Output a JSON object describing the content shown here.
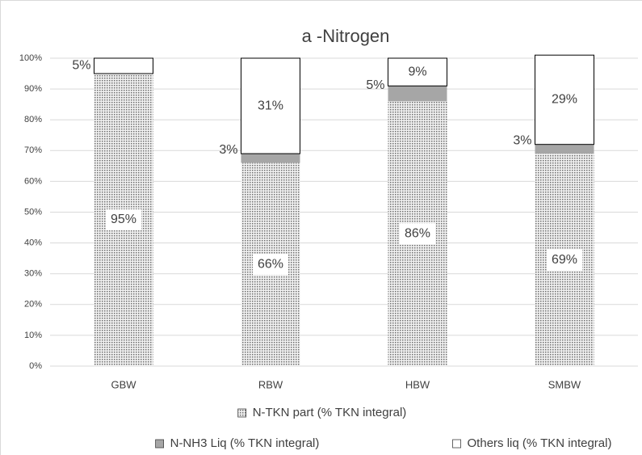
{
  "chart_data": {
    "type": "stacked_bar",
    "title": "a -Nitrogen",
    "categories": [
      "GBW",
      "RBW",
      "HBW",
      "SMBW"
    ],
    "series": [
      {
        "name": "N-TKN part (% TKN integral)",
        "color": "#8c8c8c",
        "values": [
          95,
          66,
          86,
          69
        ],
        "value_labels": [
          "95%",
          "66%",
          "86%",
          "69%"
        ]
      },
      {
        "name": "N-NH3 Liq (% TKN integral)",
        "color": "#a6a6a6",
        "values": [
          0,
          3,
          5,
          3
        ],
        "value_labels": [
          null,
          "3%",
          "5%",
          "3%"
        ]
      },
      {
        "name": "Others liq (% TKN integral)",
        "color": "#ffffff",
        "values": [
          5,
          31,
          9,
          29
        ],
        "value_labels": [
          "5%",
          "31%",
          "9%",
          "29%"
        ]
      }
    ],
    "ylim": [
      0,
      100
    ],
    "yticks": [
      {
        "value": 0,
        "label": "0%"
      },
      {
        "value": 10,
        "label": "10%"
      },
      {
        "value": 20,
        "label": "20%"
      },
      {
        "value": 30,
        "label": "30%"
      },
      {
        "value": 40,
        "label": "40%"
      },
      {
        "value": 50,
        "label": "50%"
      },
      {
        "value": 60,
        "label": "60%"
      },
      {
        "value": 70,
        "label": "70%"
      },
      {
        "value": 80,
        "label": "80%"
      },
      {
        "value": 90,
        "label": "90%"
      },
      {
        "value": 100,
        "label": "100%"
      }
    ],
    "grid": true,
    "legend": "bottom"
  }
}
